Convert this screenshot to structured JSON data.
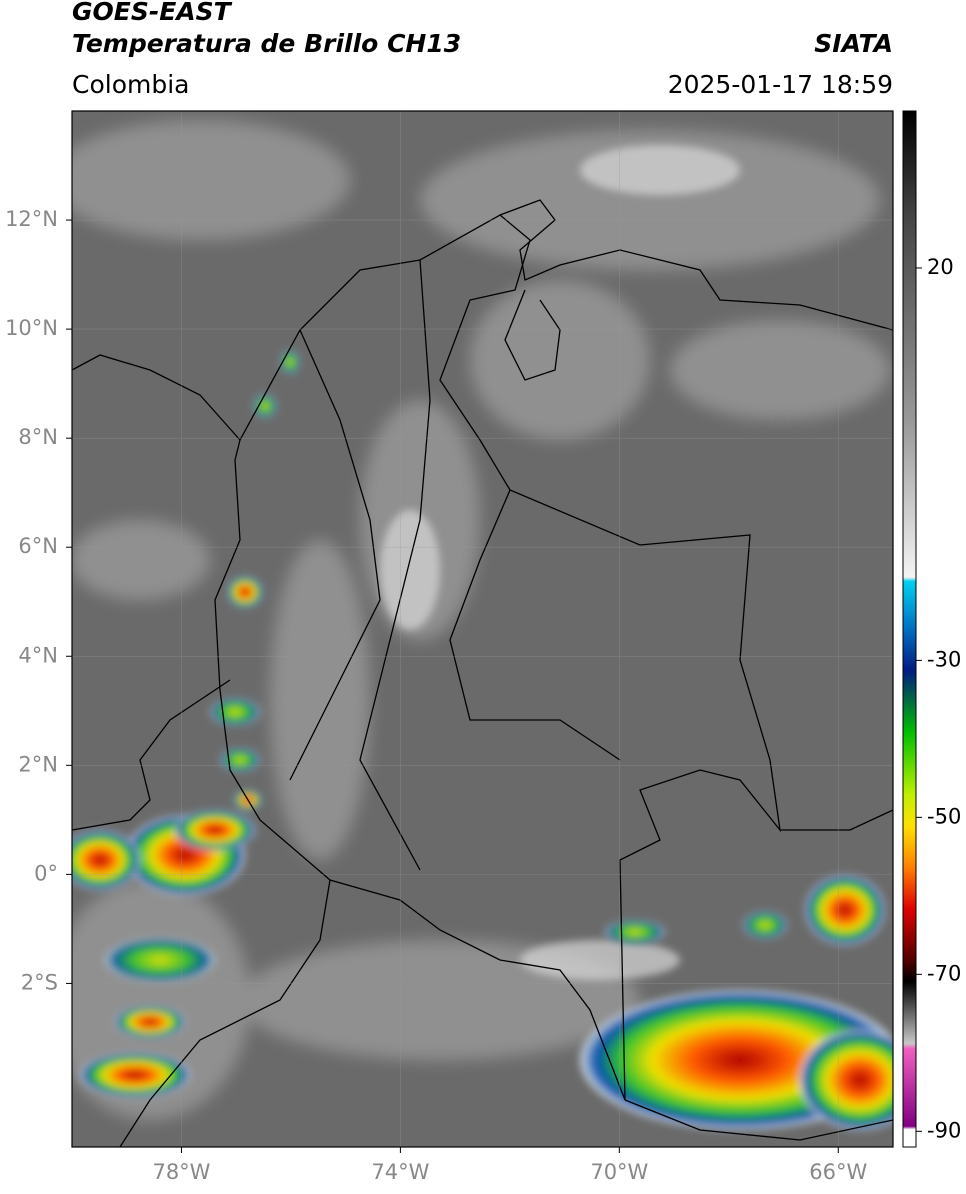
{
  "header": {
    "satellite": "GOES-EAST",
    "product": "Temperatura de Brillo CH13",
    "region": "Colombia",
    "source": "SIATA",
    "datetime": "2025-01-17 18:59"
  },
  "map": {
    "xlim": [
      -80,
      -65
    ],
    "ylim": [
      -5,
      14
    ],
    "xticks": [
      {
        "value": -78,
        "label": "78°W"
      },
      {
        "value": -74,
        "label": "74°W"
      },
      {
        "value": -70,
        "label": "70°W"
      },
      {
        "value": -66,
        "label": "66°W"
      }
    ],
    "yticks": [
      {
        "value": 12,
        "label": "12°N"
      },
      {
        "value": 10,
        "label": "10°N"
      },
      {
        "value": 8,
        "label": "8°N"
      },
      {
        "value": 6,
        "label": "6°N"
      },
      {
        "value": 4,
        "label": "4°N"
      },
      {
        "value": 2,
        "label": "2°N"
      },
      {
        "value": 0,
        "label": "0°"
      },
      {
        "value": -2,
        "label": "2°S"
      }
    ]
  },
  "colorbar": {
    "lim": [
      -92,
      40
    ],
    "ticks": [
      20,
      -30,
      -50,
      -70,
      -90
    ]
  }
}
